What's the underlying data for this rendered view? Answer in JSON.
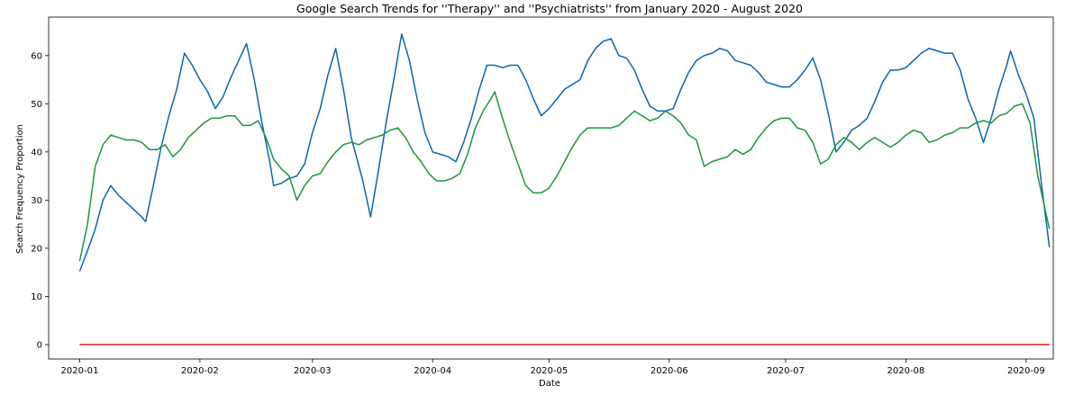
{
  "chart_data": {
    "type": "line",
    "title": "Google Search Trends for ''Therapy'' and ''Psychiatrists'' from January 2020 - August 2020",
    "xlabel": "Date",
    "ylabel": "Search Frequency Proportion",
    "xlim": [
      "2019-12-24",
      "2020-09-08"
    ],
    "ylim": [
      -3,
      68
    ],
    "x_ticks": [
      "2020-01-01",
      "2020-02-01",
      "2020-03-01",
      "2020-04-01",
      "2020-05-01",
      "2020-06-01",
      "2020-07-01",
      "2020-08-01",
      "2020-09-01"
    ],
    "x_tick_labels": [
      "2020-01",
      "2020-02",
      "2020-03",
      "2020-04",
      "2020-05",
      "2020-06",
      "2020-07",
      "2020-08",
      "2020-09"
    ],
    "y_ticks": [
      0,
      10,
      20,
      30,
      40,
      50,
      60
    ],
    "grid": false,
    "legend": "none",
    "series": [
      {
        "color": "#0868ac",
        "points": [
          [
            "2020-01-01",
            15.2
          ],
          [
            "2020-01-03",
            19.5
          ],
          [
            "2020-01-05",
            24
          ],
          [
            "2020-01-07",
            30
          ],
          [
            "2020-01-09",
            33
          ],
          [
            "2020-01-11",
            31
          ],
          [
            "2020-01-13",
            29.5
          ],
          [
            "2020-01-15",
            28
          ],
          [
            "2020-01-17",
            26.5
          ],
          [
            "2020-01-18",
            25.5
          ],
          [
            "2020-01-20",
            33
          ],
          [
            "2020-01-22",
            41
          ],
          [
            "2020-01-24",
            47.5
          ],
          [
            "2020-01-26",
            53
          ],
          [
            "2020-01-28",
            60.5
          ],
          [
            "2020-01-30",
            58
          ],
          [
            "2020-02-01",
            55
          ],
          [
            "2020-02-03",
            52.5
          ],
          [
            "2020-02-05",
            49
          ],
          [
            "2020-02-07",
            51.5
          ],
          [
            "2020-02-09",
            55.5
          ],
          [
            "2020-02-11",
            59
          ],
          [
            "2020-02-13",
            62.5
          ],
          [
            "2020-02-15",
            55
          ],
          [
            "2020-02-17",
            46
          ],
          [
            "2020-02-19",
            38
          ],
          [
            "2020-02-20",
            33
          ],
          [
            "2020-02-22",
            33.5
          ],
          [
            "2020-02-24",
            34.5
          ],
          [
            "2020-02-26",
            35
          ],
          [
            "2020-02-28",
            37.5
          ],
          [
            "2020-03-01",
            44
          ],
          [
            "2020-03-03",
            49
          ],
          [
            "2020-03-05",
            56
          ],
          [
            "2020-03-07",
            61.5
          ],
          [
            "2020-03-09",
            53
          ],
          [
            "2020-03-11",
            43
          ],
          [
            "2020-03-14",
            34
          ],
          [
            "2020-03-16",
            26.5
          ],
          [
            "2020-03-18",
            36
          ],
          [
            "2020-03-20",
            46
          ],
          [
            "2020-03-22",
            55
          ],
          [
            "2020-03-24",
            64.5
          ],
          [
            "2020-03-26",
            59
          ],
          [
            "2020-03-28",
            51
          ],
          [
            "2020-03-30",
            44
          ],
          [
            "2020-04-01",
            40
          ],
          [
            "2020-04-03",
            39.5
          ],
          [
            "2020-04-05",
            39
          ],
          [
            "2020-04-07",
            38
          ],
          [
            "2020-04-09",
            42
          ],
          [
            "2020-04-11",
            47
          ],
          [
            "2020-04-13",
            53
          ],
          [
            "2020-04-15",
            58
          ],
          [
            "2020-04-17",
            58
          ],
          [
            "2020-04-19",
            57.5
          ],
          [
            "2020-04-21",
            58
          ],
          [
            "2020-04-23",
            58
          ],
          [
            "2020-04-25",
            55
          ],
          [
            "2020-04-27",
            51
          ],
          [
            "2020-04-29",
            47.5
          ],
          [
            "2020-05-01",
            49
          ],
          [
            "2020-05-03",
            51
          ],
          [
            "2020-05-05",
            53
          ],
          [
            "2020-05-07",
            54
          ],
          [
            "2020-05-09",
            55
          ],
          [
            "2020-05-11",
            59
          ],
          [
            "2020-05-13",
            61.5
          ],
          [
            "2020-05-15",
            63
          ],
          [
            "2020-05-17",
            63.5
          ],
          [
            "2020-05-19",
            60
          ],
          [
            "2020-05-21",
            59.5
          ],
          [
            "2020-05-23",
            57
          ],
          [
            "2020-05-25",
            53
          ],
          [
            "2020-05-27",
            49.5
          ],
          [
            "2020-05-29",
            48.5
          ],
          [
            "2020-05-31",
            48.5
          ],
          [
            "2020-06-02",
            49
          ],
          [
            "2020-06-04",
            53
          ],
          [
            "2020-06-06",
            56.5
          ],
          [
            "2020-06-08",
            59
          ],
          [
            "2020-06-10",
            60
          ],
          [
            "2020-06-12",
            60.5
          ],
          [
            "2020-06-14",
            61.5
          ],
          [
            "2020-06-16",
            61
          ],
          [
            "2020-06-18",
            59
          ],
          [
            "2020-06-20",
            58.5
          ],
          [
            "2020-06-22",
            58
          ],
          [
            "2020-06-24",
            56.5
          ],
          [
            "2020-06-26",
            54.5
          ],
          [
            "2020-06-28",
            54
          ],
          [
            "2020-06-30",
            53.5
          ],
          [
            "2020-07-02",
            53.5
          ],
          [
            "2020-07-04",
            55
          ],
          [
            "2020-07-06",
            57
          ],
          [
            "2020-07-08",
            59.5
          ],
          [
            "2020-07-10",
            55
          ],
          [
            "2020-07-12",
            48
          ],
          [
            "2020-07-14",
            40
          ],
          [
            "2020-07-16",
            42
          ],
          [
            "2020-07-18",
            44.5
          ],
          [
            "2020-07-20",
            45.5
          ],
          [
            "2020-07-22",
            47
          ],
          [
            "2020-07-24",
            50.5
          ],
          [
            "2020-07-26",
            54.5
          ],
          [
            "2020-07-28",
            57
          ],
          [
            "2020-07-30",
            57
          ],
          [
            "2020-08-01",
            57.5
          ],
          [
            "2020-08-03",
            59
          ],
          [
            "2020-08-05",
            60.5
          ],
          [
            "2020-08-07",
            61.5
          ],
          [
            "2020-08-09",
            61
          ],
          [
            "2020-08-11",
            60.5
          ],
          [
            "2020-08-13",
            60.5
          ],
          [
            "2020-08-15",
            57
          ],
          [
            "2020-08-17",
            51
          ],
          [
            "2020-08-19",
            47
          ],
          [
            "2020-08-21",
            42
          ],
          [
            "2020-08-23",
            47
          ],
          [
            "2020-08-25",
            53
          ],
          [
            "2020-08-27",
            58
          ],
          [
            "2020-08-28",
            61
          ],
          [
            "2020-08-30",
            56
          ],
          [
            "2020-09-01",
            52
          ],
          [
            "2020-09-03",
            47
          ],
          [
            "2020-09-05",
            33
          ],
          [
            "2020-09-07",
            20.2
          ]
        ]
      },
      {
        "color": "#1a9641",
        "points": [
          [
            "2020-01-01",
            17.3
          ],
          [
            "2020-01-03",
            25
          ],
          [
            "2020-01-05",
            37
          ],
          [
            "2020-01-07",
            41.5
          ],
          [
            "2020-01-09",
            43.5
          ],
          [
            "2020-01-11",
            43
          ],
          [
            "2020-01-13",
            42.5
          ],
          [
            "2020-01-15",
            42.5
          ],
          [
            "2020-01-17",
            42
          ],
          [
            "2020-01-19",
            40.5
          ],
          [
            "2020-01-21",
            40.5
          ],
          [
            "2020-01-23",
            41.5
          ],
          [
            "2020-01-25",
            39
          ],
          [
            "2020-01-27",
            40.5
          ],
          [
            "2020-01-29",
            43
          ],
          [
            "2020-01-31",
            44.5
          ],
          [
            "2020-02-02",
            46
          ],
          [
            "2020-02-04",
            47
          ],
          [
            "2020-02-06",
            47
          ],
          [
            "2020-02-08",
            47.5
          ],
          [
            "2020-02-10",
            47.5
          ],
          [
            "2020-02-12",
            45.5
          ],
          [
            "2020-02-14",
            45.5
          ],
          [
            "2020-02-16",
            46.5
          ],
          [
            "2020-02-18",
            43
          ],
          [
            "2020-02-20",
            38.5
          ],
          [
            "2020-02-22",
            36.5
          ],
          [
            "2020-02-24",
            35
          ],
          [
            "2020-02-26",
            30
          ],
          [
            "2020-02-28",
            33
          ],
          [
            "2020-03-01",
            35
          ],
          [
            "2020-03-03",
            35.5
          ],
          [
            "2020-03-05",
            38
          ],
          [
            "2020-03-07",
            40
          ],
          [
            "2020-03-09",
            41.5
          ],
          [
            "2020-03-11",
            42
          ],
          [
            "2020-03-13",
            41.5
          ],
          [
            "2020-03-15",
            42.5
          ],
          [
            "2020-03-17",
            43
          ],
          [
            "2020-03-19",
            43.5
          ],
          [
            "2020-03-21",
            44.5
          ],
          [
            "2020-03-23",
            45
          ],
          [
            "2020-03-25",
            43
          ],
          [
            "2020-03-27",
            40
          ],
          [
            "2020-03-29",
            38
          ],
          [
            "2020-03-31",
            35.5
          ],
          [
            "2020-04-02",
            34
          ],
          [
            "2020-04-04",
            34
          ],
          [
            "2020-04-06",
            34.5
          ],
          [
            "2020-04-08",
            35.5
          ],
          [
            "2020-04-10",
            39.5
          ],
          [
            "2020-04-12",
            45
          ],
          [
            "2020-04-14",
            48.5
          ],
          [
            "2020-04-16",
            51
          ],
          [
            "2020-04-17",
            52.5
          ],
          [
            "2020-04-19",
            47
          ],
          [
            "2020-04-21",
            42
          ],
          [
            "2020-04-23",
            37.5
          ],
          [
            "2020-04-25",
            33
          ],
          [
            "2020-04-27",
            31.5
          ],
          [
            "2020-04-29",
            31.5
          ],
          [
            "2020-05-01",
            32.5
          ],
          [
            "2020-05-03",
            35
          ],
          [
            "2020-05-05",
            38
          ],
          [
            "2020-05-07",
            41
          ],
          [
            "2020-05-09",
            43.5
          ],
          [
            "2020-05-11",
            45
          ],
          [
            "2020-05-13",
            45
          ],
          [
            "2020-05-15",
            45
          ],
          [
            "2020-05-17",
            45
          ],
          [
            "2020-05-19",
            45.5
          ],
          [
            "2020-05-21",
            47
          ],
          [
            "2020-05-23",
            48.5
          ],
          [
            "2020-05-25",
            47.5
          ],
          [
            "2020-05-27",
            46.5
          ],
          [
            "2020-05-29",
            47
          ],
          [
            "2020-05-31",
            48.5
          ],
          [
            "2020-06-02",
            47.5
          ],
          [
            "2020-06-04",
            46
          ],
          [
            "2020-06-06",
            43.5
          ],
          [
            "2020-06-08",
            42.5
          ],
          [
            "2020-06-10",
            37
          ],
          [
            "2020-06-12",
            38
          ],
          [
            "2020-06-14",
            38.5
          ],
          [
            "2020-06-16",
            39
          ],
          [
            "2020-06-18",
            40.5
          ],
          [
            "2020-06-20",
            39.5
          ],
          [
            "2020-06-22",
            40.5
          ],
          [
            "2020-06-24",
            43
          ],
          [
            "2020-06-26",
            45
          ],
          [
            "2020-06-28",
            46.5
          ],
          [
            "2020-06-30",
            47
          ],
          [
            "2020-07-02",
            47
          ],
          [
            "2020-07-04",
            45
          ],
          [
            "2020-07-06",
            44.5
          ],
          [
            "2020-07-08",
            42
          ],
          [
            "2020-07-10",
            37.5
          ],
          [
            "2020-07-12",
            38.5
          ],
          [
            "2020-07-14",
            41.5
          ],
          [
            "2020-07-16",
            43
          ],
          [
            "2020-07-18",
            42
          ],
          [
            "2020-07-20",
            40.5
          ],
          [
            "2020-07-22",
            42
          ],
          [
            "2020-07-24",
            43
          ],
          [
            "2020-07-26",
            42
          ],
          [
            "2020-07-28",
            41
          ],
          [
            "2020-07-30",
            42
          ],
          [
            "2020-08-01",
            43.5
          ],
          [
            "2020-08-03",
            44.5
          ],
          [
            "2020-08-05",
            44
          ],
          [
            "2020-08-07",
            42
          ],
          [
            "2020-08-09",
            42.5
          ],
          [
            "2020-08-11",
            43.5
          ],
          [
            "2020-08-13",
            44
          ],
          [
            "2020-08-15",
            45
          ],
          [
            "2020-08-17",
            45
          ],
          [
            "2020-08-19",
            46
          ],
          [
            "2020-08-21",
            46.5
          ],
          [
            "2020-08-23",
            46
          ],
          [
            "2020-08-25",
            47.5
          ],
          [
            "2020-08-27",
            48
          ],
          [
            "2020-08-29",
            49.5
          ],
          [
            "2020-08-31",
            50
          ],
          [
            "2020-09-02",
            46
          ],
          [
            "2020-09-04",
            35
          ],
          [
            "2020-09-07",
            24
          ]
        ]
      },
      {
        "color": "#e41a1c",
        "points": [
          [
            "2020-01-01",
            0
          ],
          [
            "2020-09-07",
            0
          ]
        ]
      }
    ]
  }
}
